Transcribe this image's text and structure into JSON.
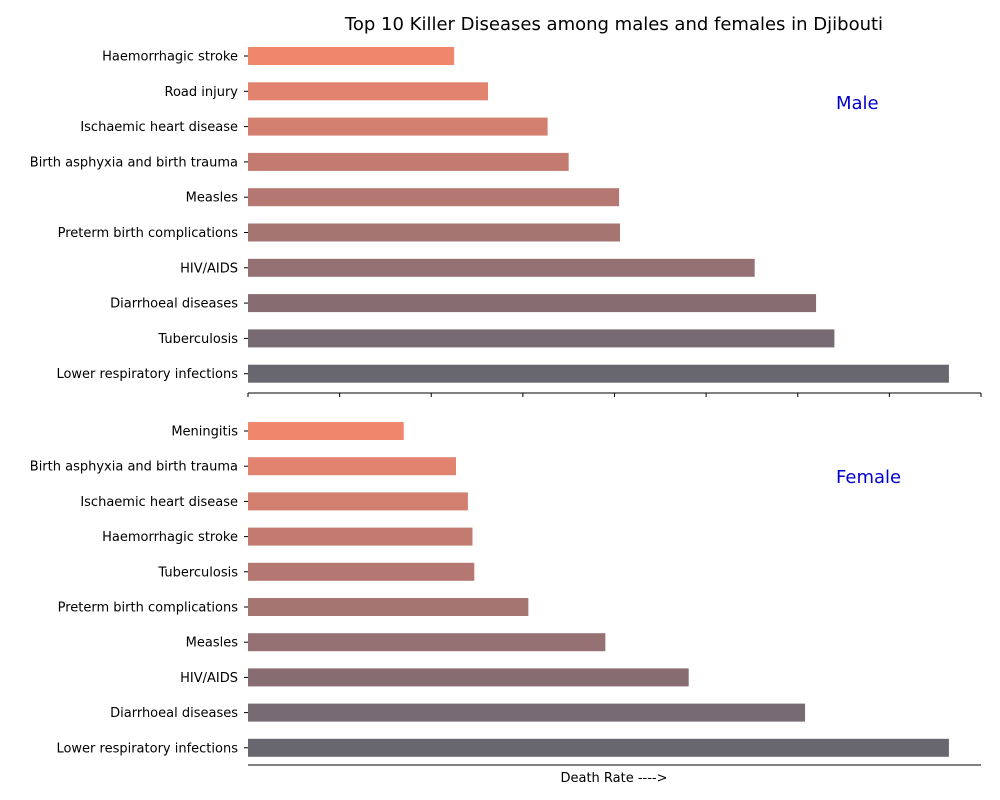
{
  "chart_data": [
    {
      "type": "bar",
      "orientation": "horizontal",
      "title": "Top 10 Killer Diseases among males and females in Djibouti",
      "panel_label": "Male",
      "categories": [
        "Haemorrhagic stroke",
        "Road injury",
        "Ischaemic heart disease",
        "Birth asphyxia and birth trauma",
        "Measles",
        "Preterm birth complications",
        "HIV/AIDS",
        "Diarrhoeal diseases",
        "Tuberculosis",
        "Lower respiratory infections"
      ],
      "values": [
        22.5,
        26.2,
        32.7,
        35.0,
        40.5,
        40.6,
        55.3,
        62.0,
        64.0,
        76.5
      ],
      "xlim": [
        0,
        80
      ],
      "bar_colors": [
        "#f0876d",
        "#e1836e",
        "#d27f6f",
        "#c37b70",
        "#b47771",
        "#a57572",
        "#967173",
        "#876d71",
        "#786a72",
        "#686770"
      ]
    },
    {
      "type": "bar",
      "orientation": "horizontal",
      "panel_label": "Female",
      "xlabel": "Death Rate ---->",
      "categories": [
        "Meningitis",
        "Birth asphyxia and birth trauma",
        "Ischaemic heart disease",
        "Haemorrhagic stroke",
        "Tuberculosis",
        "Preterm birth complications",
        "Measles",
        "HIV/AIDS",
        "Diarrhoeal diseases",
        "Lower respiratory infections"
      ],
      "values": [
        17.0,
        22.7,
        24.0,
        24.5,
        24.7,
        30.6,
        39.0,
        48.1,
        60.8,
        76.5
      ],
      "xlim": [
        0,
        80
      ],
      "bar_colors": [
        "#f0876d",
        "#e1836e",
        "#d27f6f",
        "#c37b70",
        "#b47771",
        "#a57572",
        "#967173",
        "#876d71",
        "#786a72",
        "#686770"
      ]
    }
  ]
}
